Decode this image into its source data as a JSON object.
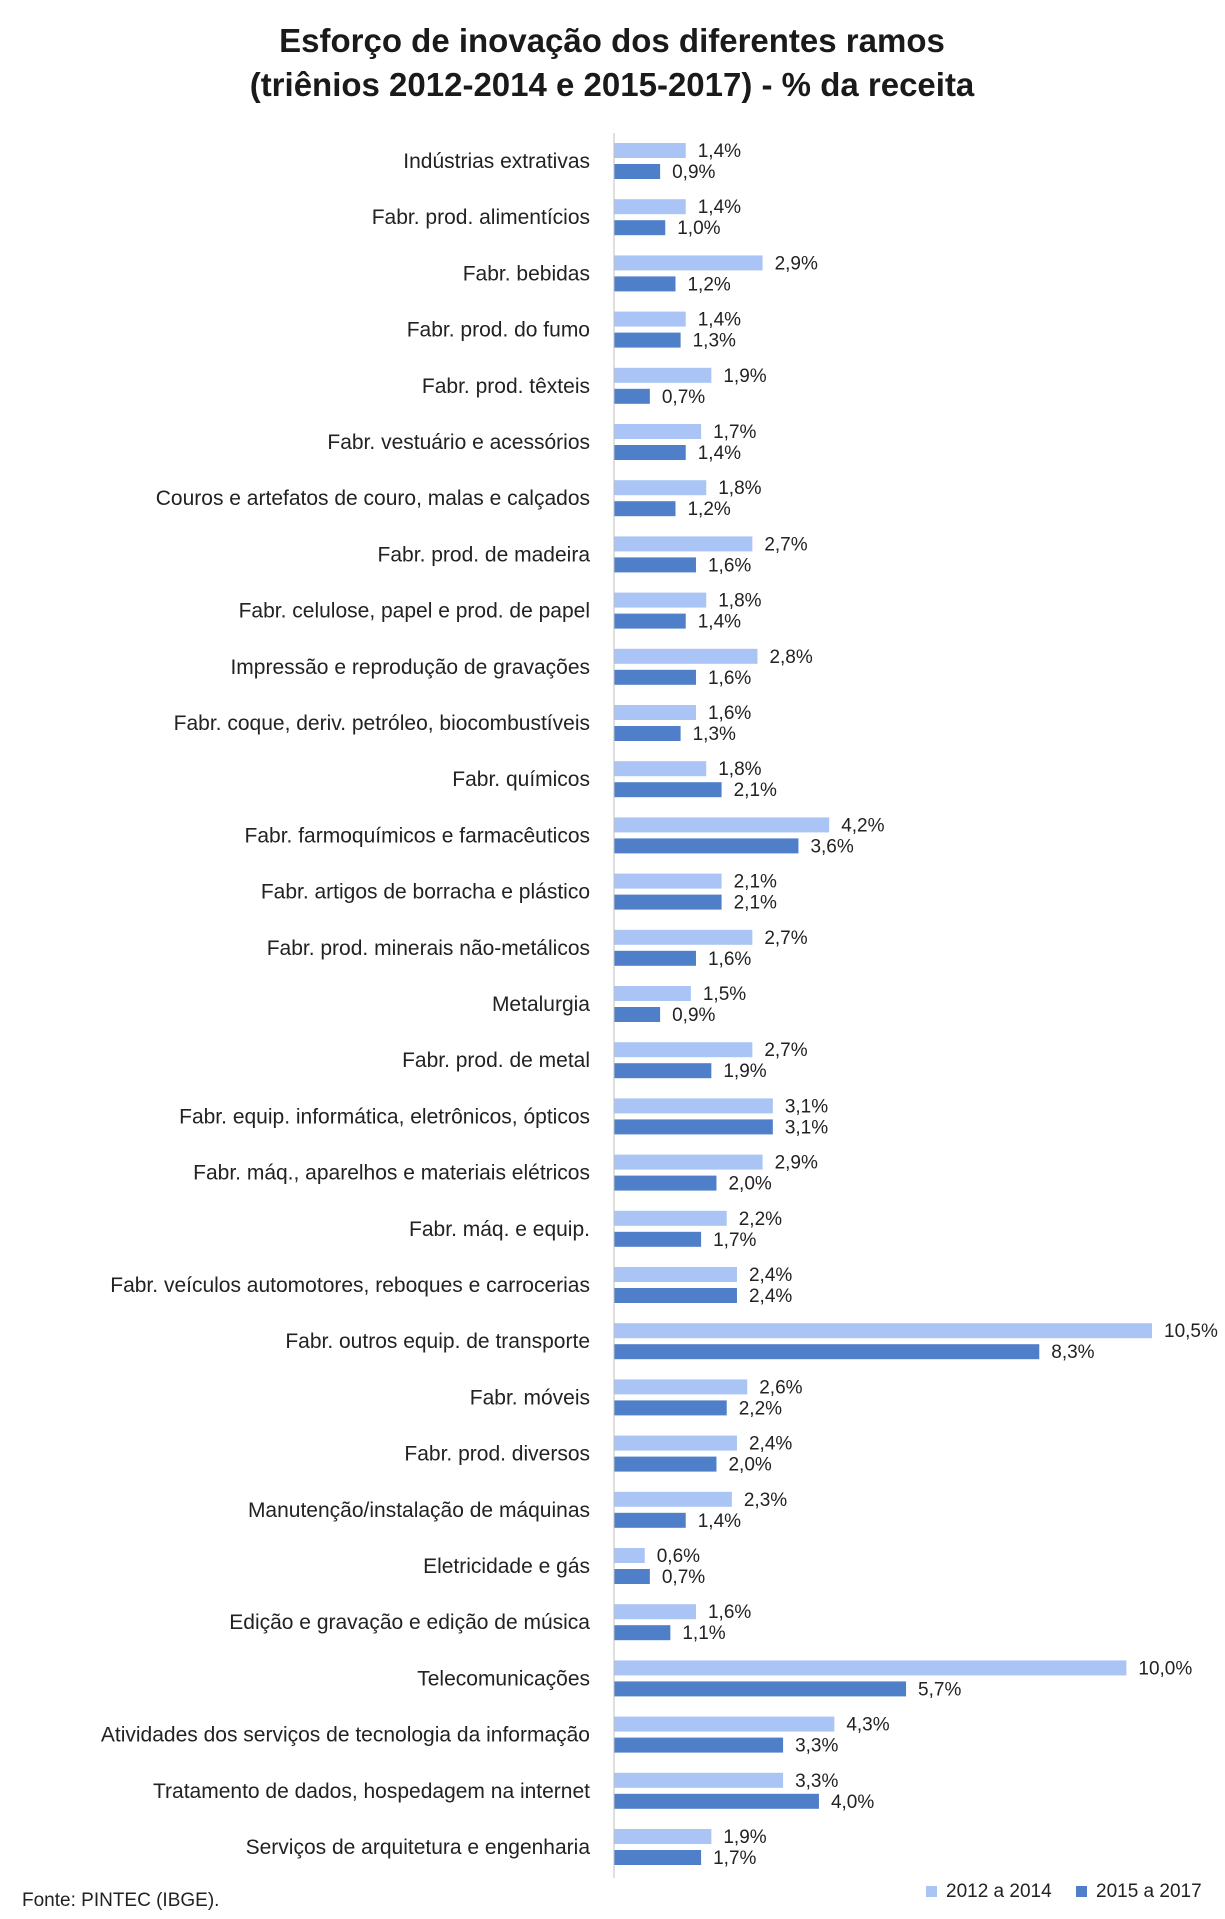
{
  "chart_data": {
    "type": "bar",
    "orientation": "horizontal",
    "title": "Esforço de inovação dos diferentes ramos",
    "subtitle": "(triênios 2012-2014 e 2015-2017) - % da receita",
    "xlabel": "",
    "ylabel": "",
    "xlim": [
      0,
      10.5
    ],
    "grid": false,
    "legend_position": "bottom-right",
    "source": "Fonte: PINTEC (IBGE).",
    "value_suffix": "%",
    "decimal_separator": ",",
    "categories": [
      "Indústrias extrativas",
      "Fabr. prod. alimentícios",
      "Fabr. bebidas",
      "Fabr. prod. do fumo",
      "Fabr. prod. têxteis",
      "Fabr. vestuário e acessórios",
      "Couros e artefatos de couro, malas e calçados",
      "Fabr. prod. de madeira",
      "Fabr. celulose, papel e prod. de papel",
      "Impressão e reprodução de gravações",
      "Fabr. coque, deriv. petróleo, biocombustíveis",
      "Fabr. químicos",
      "Fabr. farmoquímicos e farmacêuticos",
      "Fabr. artigos de borracha e plástico",
      "Fabr. prod. minerais não-metálicos",
      "Metalurgia",
      "Fabr. prod. de metal",
      "Fabr. equip. informática, eletrônicos, ópticos",
      "Fabr. máq., aparelhos e materiais elétricos",
      "Fabr. máq. e equip.",
      "Fabr. veículos automotores, reboques e carrocerias",
      "Fabr. outros equip. de transporte",
      "Fabr. móveis",
      "Fabr. prod. diversos",
      "Manutenção/instalação de máquinas",
      "Eletricidade e gás",
      "Edição e gravação e edição de música",
      "Telecomunicações",
      "Atividades dos serviços de tecnologia da informação",
      "Tratamento de dados, hospedagem na internet",
      "Serviços de arquitetura e engenharia"
    ],
    "series": [
      {
        "name": "2012 a 2014",
        "color": "#a9c4f5",
        "values": [
          1.4,
          1.4,
          2.9,
          1.4,
          1.9,
          1.7,
          1.8,
          2.7,
          1.8,
          2.8,
          1.6,
          1.8,
          4.2,
          2.1,
          2.7,
          1.5,
          2.7,
          3.1,
          2.9,
          2.2,
          2.4,
          10.5,
          2.6,
          2.4,
          2.3,
          0.6,
          1.6,
          10.0,
          4.3,
          3.3,
          1.9
        ]
      },
      {
        "name": "2015 a 2017",
        "color": "#4f7fc8",
        "values": [
          0.9,
          1.0,
          1.2,
          1.3,
          0.7,
          1.4,
          1.2,
          1.6,
          1.4,
          1.6,
          1.3,
          2.1,
          3.6,
          2.1,
          1.6,
          0.9,
          1.9,
          3.1,
          2.0,
          1.7,
          2.4,
          8.3,
          2.2,
          2.0,
          1.4,
          0.7,
          1.1,
          5.7,
          3.3,
          4.0,
          1.7
        ]
      }
    ]
  }
}
